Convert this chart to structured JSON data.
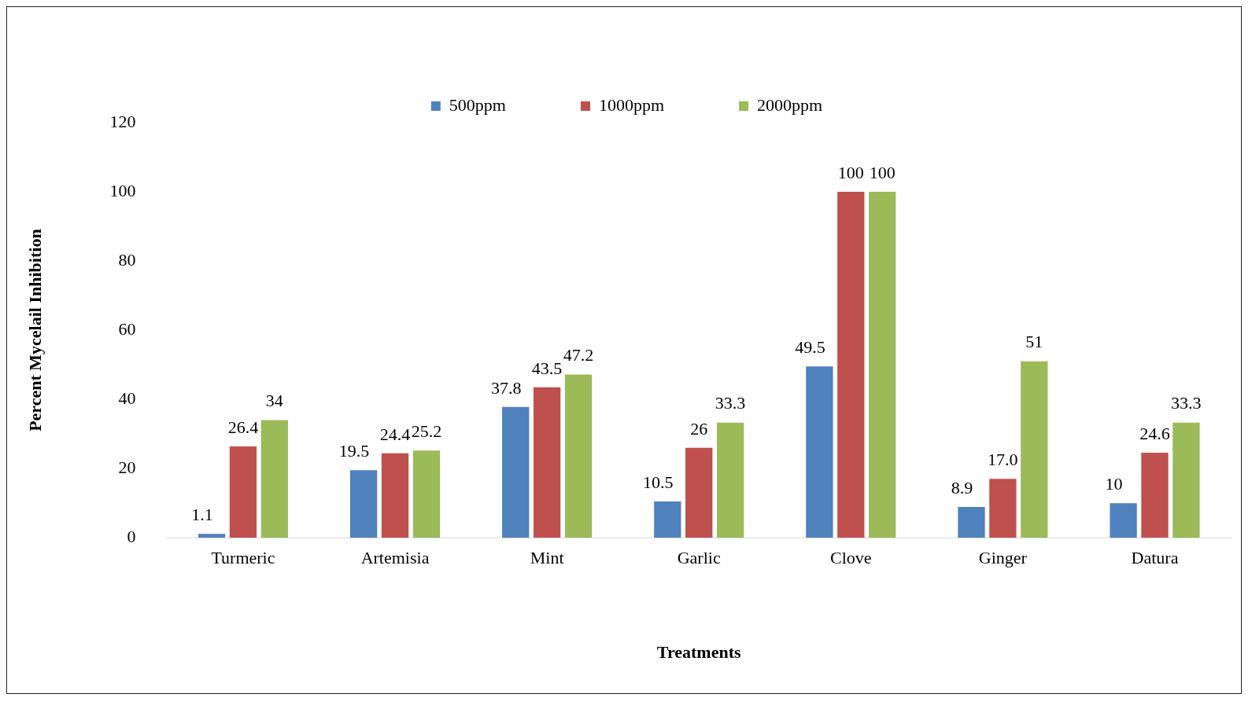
{
  "chart_data": {
    "type": "bar",
    "xlabel": "Treatments",
    "ylabel": "Percent Mycelail Inhibition",
    "categories": [
      "Turmeric",
      "Artemisia",
      "Mint",
      "Garlic",
      "Clove",
      "Ginger",
      "Datura"
    ],
    "series": [
      {
        "name": "500ppm",
        "color": "#4f81bd",
        "values": [
          1.1,
          19.5,
          37.8,
          10.5,
          49.5,
          8.9,
          10
        ],
        "value_labels": [
          "1.1",
          "19.5",
          "37.8",
          "10.5",
          "49.5",
          "8.9",
          "10"
        ]
      },
      {
        "name": "1000ppm",
        "color": "#c0504d",
        "values": [
          26.4,
          24.4,
          43.5,
          26,
          100,
          17.0,
          24.6
        ],
        "value_labels": [
          "26.4",
          "24.4",
          "43.5",
          "26",
          "100",
          "17.0",
          "24.6"
        ]
      },
      {
        "name": "2000ppm",
        "color": "#9bbb59",
        "values": [
          34,
          25.2,
          47.2,
          33.3,
          100,
          51,
          33.3
        ],
        "value_labels": [
          "34",
          "25.2",
          "47.2",
          "33.3",
          "100",
          "51",
          "33.3"
        ]
      }
    ],
    "ylim": [
      0,
      120
    ],
    "yticks": [
      0,
      20,
      40,
      60,
      80,
      100,
      120
    ],
    "grid": false,
    "legend": "top"
  }
}
